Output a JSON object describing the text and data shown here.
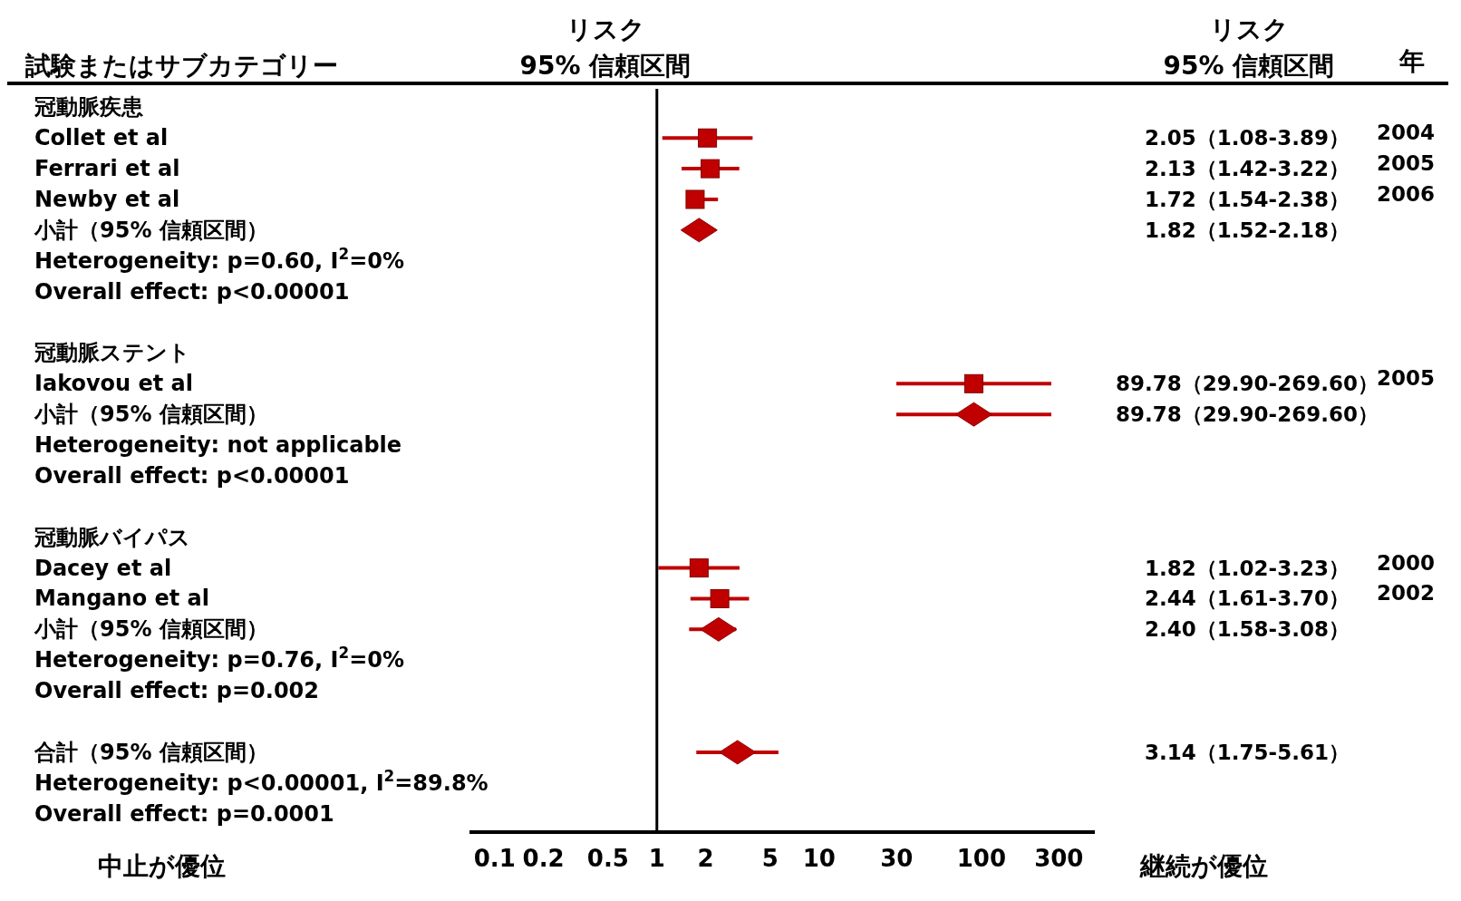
{
  "chart_data": {
    "type": "scatter",
    "orientation": "horizontal",
    "categories": [
      "冠動脈疾患",
      "Collet et al",
      "Ferrari et al",
      "Newby et al",
      "小計（95% 信頼区間）",
      "Heterogeneity:  p=0.60, I$^{2}$=0%",
      "Overall effect:  p<0.00001",
      null,
      "冠動脈ステント",
      "Iakovou et al",
      "小計（95% 信頼区間）",
      "Heterogeneity:  not applicable",
      "Overall effect:  p<0.00001",
      null,
      "冠動脈バイパス",
      "Dacey et al",
      "Mangano et al",
      "小計（95% 信頼区間）",
      "Heterogeneity:  p=0.76, I$^{2}$=0%",
      "Overall effect:  p=0.002",
      null,
      "合計（95% 信頼区間）",
      "Heterogeneity:  p<0.00001, I$^{2}$=89.8%",
      "Overall effect:  p=0.0001"
    ],
    "series": [
      {
        "color": "#c00000",
        "marker": "square",
        "values": [
          null,
          2.05,
          2.13,
          1.72,
          null,
          null,
          null,
          null,
          null,
          89.78,
          null,
          null,
          null,
          null,
          null,
          1.82,
          2.44,
          null,
          null,
          null,
          null,
          null,
          null,
          null
        ],
        "errors": [
          null,
          [
            1.08,
            3.89
          ],
          [
            1.42,
            3.22
          ],
          [
            1.54,
            2.38
          ],
          null,
          null,
          null,
          null,
          null,
          [
            29.9,
            269.6
          ],
          null,
          null,
          null,
          null,
          null,
          [
            1.02,
            3.23
          ],
          [
            1.61,
            3.7
          ],
          null,
          null,
          null,
          null,
          null,
          null,
          null
        ]
      },
      {
        "color": "#c00000",
        "marker": "diamond",
        "values": [
          null,
          null,
          null,
          null,
          1.82,
          null,
          null,
          null,
          null,
          null,
          89.78,
          null,
          null,
          null,
          null,
          null,
          null,
          2.4,
          null,
          null,
          null,
          3.14,
          null,
          null
        ],
        "errors": [
          null,
          null,
          null,
          null,
          [
            1.52,
            2.18
          ],
          null,
          null,
          null,
          null,
          null,
          [
            29.9,
            269.6
          ],
          null,
          null,
          null,
          null,
          null,
          null,
          [
            1.58,
            3.08
          ],
          null,
          null,
          null,
          [
            1.75,
            5.61
          ],
          null,
          null
        ]
      }
    ],
    "log": "x",
    "xlim": [
      0.07,
      500
    ],
    "xticks": [
      0.1,
      0.2,
      0.5,
      1,
      2,
      5,
      10,
      30,
      100,
      300
    ],
    "ref_lines": [
      {
        "axis": "x",
        "value": 1,
        "color": "#000000"
      }
    ],
    "annotations": [
      "試験またはサブカテゴリー",
      "リスク\n95% 信頼区間",
      "リスク\n95% 信頼区間",
      "年",
      "中止が優位",
      "継続が優位",
      "2004",
      "2005",
      "2006",
      "2005",
      "2000",
      "2002",
      "2.05（1.08-3.89）",
      "2.13（1.42-3.22）",
      "1.72（1.54-2.38）",
      "1.82（1.52-2.18）",
      "89.78（29.90-269.60）",
      "89.78（29.90-269.60）",
      "1.82（1.02-3.23）",
      "2.44（1.61-3.70）",
      "2.40（1.58-3.08）",
      "3.14（1.75-5.61）"
    ],
    "grid": false,
    "legend": false
  }
}
